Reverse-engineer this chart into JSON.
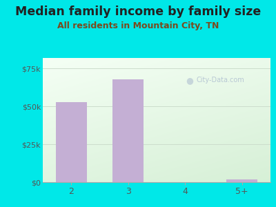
{
  "title": "Median family income by family size",
  "subtitle": "All residents in Mountain City, TN",
  "categories": [
    "2",
    "3",
    "4",
    "5+"
  ],
  "values": [
    53000,
    68000,
    0,
    2000
  ],
  "bar_color": "#c4afd4",
  "bar_edgecolor": "#b09cc0",
  "bg_outer": "#00e8e8",
  "title_color": "#222222",
  "subtitle_color": "#7a4a1e",
  "ytick_labels": [
    "$0",
    "$25k",
    "$50k",
    "$75k"
  ],
  "ytick_values": [
    0,
    25000,
    50000,
    75000
  ],
  "ylim": [
    0,
    82000
  ],
  "title_fontsize": 12.5,
  "subtitle_fontsize": 9.0,
  "watermark_text": "City-Data.com",
  "watermark_color": "#b8c8d4",
  "grid_color": "#ccddcc",
  "tick_label_color": "#555555"
}
